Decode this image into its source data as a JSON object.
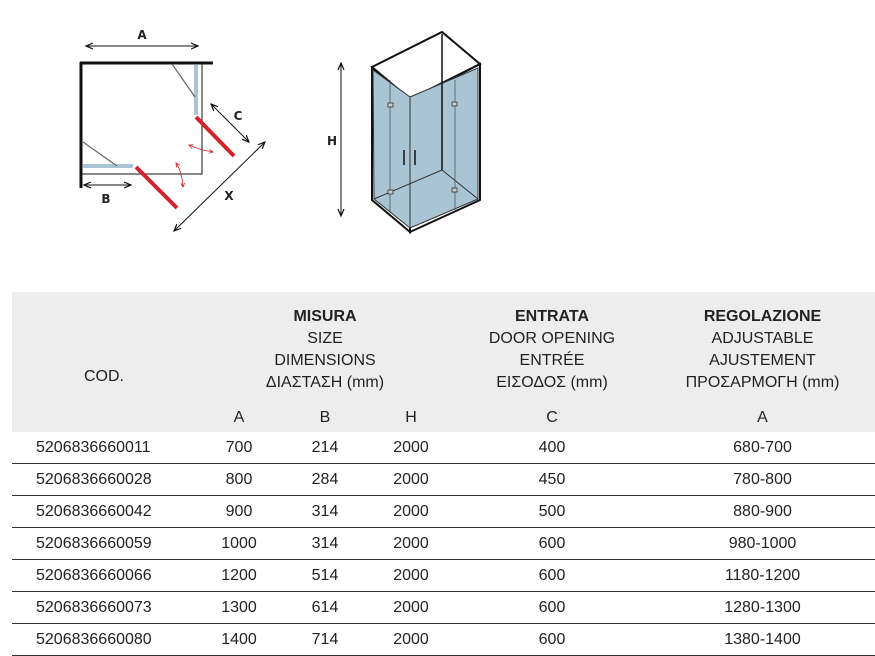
{
  "diagram": {
    "plan_labels": {
      "a": "A",
      "b": "B",
      "c": "C",
      "x": "X"
    },
    "elevation_label": "H",
    "colors": {
      "wall": "#111111",
      "glass": "#a9c4d4",
      "door": "#d2232a"
    }
  },
  "table": {
    "header": {
      "code": "COD.",
      "size": [
        "MISURA",
        "SIZE",
        "DIMENSIONS",
        "ΔΙΑΣΤΑΣΗ (mm)"
      ],
      "entrance": [
        "ENTRATA",
        "DOOR OPENING",
        "ENTRÉE",
        "ΕΙΣΟΔΟΣ (mm)"
      ],
      "adjust": [
        "REGOLAZIONE",
        "ADJUSTABLE",
        "AJUSTEMENT",
        "ΠΡΟΣΑΡΜΟΓΗ (mm)"
      ],
      "sub": [
        "A",
        "B",
        "H",
        "C",
        "A"
      ]
    },
    "rows": [
      [
        "5206836660011",
        "700",
        "214",
        "2000",
        "400",
        "680-700"
      ],
      [
        "5206836660028",
        "800",
        "284",
        "2000",
        "450",
        "780-800"
      ],
      [
        "5206836660042",
        "900",
        "314",
        "2000",
        "500",
        "880-900"
      ],
      [
        "5206836660059",
        "1000",
        "314",
        "2000",
        "600",
        "980-1000"
      ],
      [
        "5206836660066",
        "1200",
        "514",
        "2000",
        "600",
        "1180-1200"
      ],
      [
        "5206836660073",
        "1300",
        "614",
        "2000",
        "600",
        "1280-1300"
      ],
      [
        "5206836660080",
        "1400",
        "714",
        "2000",
        "600",
        "1380-1400"
      ]
    ]
  }
}
